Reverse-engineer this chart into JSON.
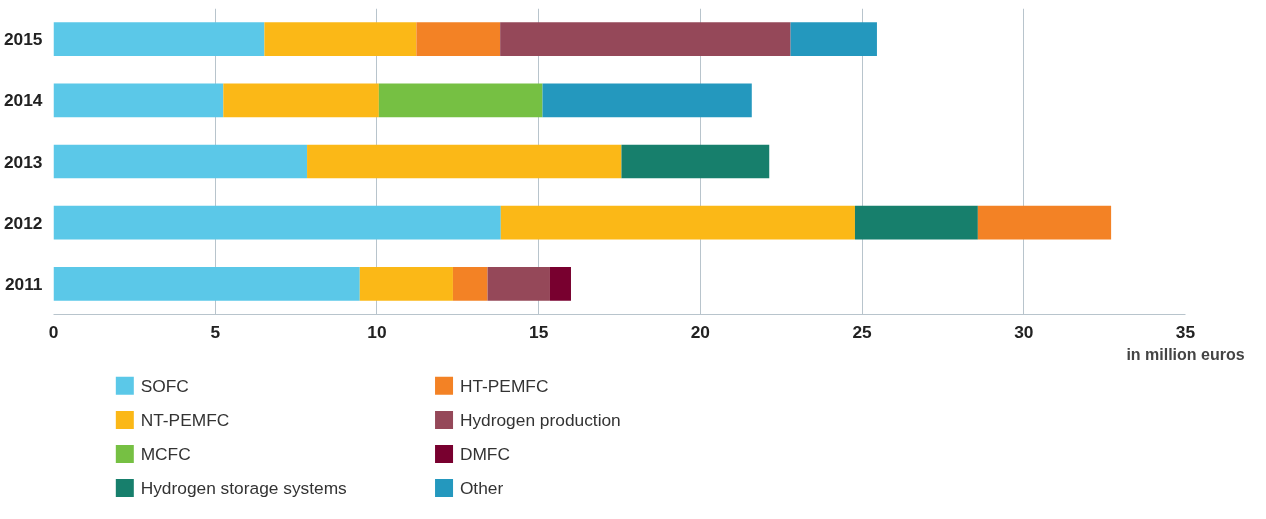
{
  "chart_data": {
    "type": "bar",
    "orientation": "horizontal",
    "stacked": true,
    "xlabel": "in million euros",
    "categories": [
      "2015",
      "2014",
      "2013",
      "2012",
      "2011"
    ],
    "series": [
      {
        "name": "SOFC",
        "color": "#5bc8e8",
        "values": [
          6.52,
          5.25,
          7.84,
          13.83,
          9.47
        ]
      },
      {
        "name": "NT-PEMFC",
        "color": "#fbb817",
        "values": [
          4.7,
          4.81,
          9.72,
          10.95,
          2.88
        ]
      },
      {
        "name": "MCFC",
        "color": "#76c043",
        "values": [
          null,
          5.06,
          null,
          null,
          null
        ]
      },
      {
        "name": "Hydrogen storage systems",
        "color": "#177f6c",
        "values": [
          null,
          null,
          4.57,
          3.8,
          null
        ]
      },
      {
        "name": "HT-PEMFC",
        "color": "#f38225",
        "values": [
          2.59,
          null,
          null,
          4.12,
          1.07
        ]
      },
      {
        "name": "Hydrogen production",
        "color": "#954859",
        "values": [
          8.98,
          null,
          null,
          null,
          1.93
        ]
      },
      {
        "name": "DMFC",
        "color": "#78002f",
        "values": [
          null,
          null,
          null,
          null,
          0.65
        ]
      },
      {
        "name": "Other",
        "color": "#2498be",
        "values": [
          2.67,
          6.47,
          null,
          null,
          null
        ]
      }
    ],
    "xlim": [
      0,
      35
    ],
    "xticks": [
      0,
      5,
      10,
      15,
      20,
      25,
      30,
      35
    ],
    "grid": "x",
    "legend": "bottom left"
  }
}
